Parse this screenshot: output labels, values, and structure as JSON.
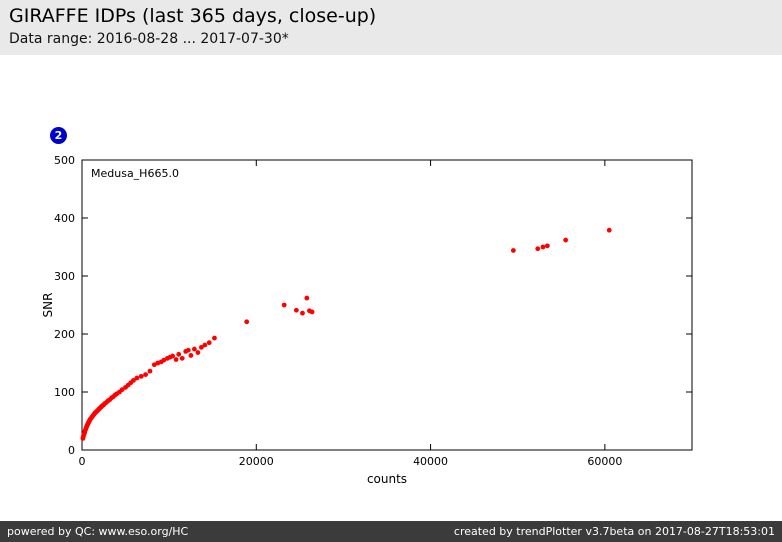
{
  "header": {
    "title": "GIRAFFE IDPs (last 365 days, close-up)",
    "subtitle": "Data range: 2016-08-28 ... 2017-07-30*"
  },
  "badge": {
    "label": "2",
    "color": "#0000cd"
  },
  "footer": {
    "left": "powered by QC: www.eso.org/HC",
    "right": "created by trendPlotter v3.7beta on 2017-08-27T18:53:01"
  },
  "chart_data": {
    "type": "scatter",
    "series_label": "Medusa_H665.0",
    "xlabel": "counts",
    "ylabel": "SNR",
    "xlim": [
      0,
      70000
    ],
    "ylim": [
      0,
      500
    ],
    "x_ticks": [
      0,
      20000,
      40000,
      60000
    ],
    "y_ticks": [
      0,
      100,
      200,
      300,
      400,
      500
    ],
    "marker_color": "#ff0000",
    "points": [
      [
        100,
        20
      ],
      [
        150,
        23
      ],
      [
        200,
        26
      ],
      [
        250,
        28
      ],
      [
        300,
        30
      ],
      [
        350,
        33
      ],
      [
        400,
        35
      ],
      [
        450,
        37
      ],
      [
        500,
        39
      ],
      [
        550,
        41
      ],
      [
        600,
        43
      ],
      [
        650,
        44
      ],
      [
        700,
        46
      ],
      [
        750,
        47
      ],
      [
        800,
        49
      ],
      [
        850,
        50
      ],
      [
        900,
        52
      ],
      [
        950,
        53
      ],
      [
        1000,
        54
      ],
      [
        1100,
        56
      ],
      [
        1200,
        58
      ],
      [
        1300,
        60
      ],
      [
        1400,
        62
      ],
      [
        1500,
        64
      ],
      [
        1600,
        65
      ],
      [
        1700,
        67
      ],
      [
        1800,
        68
      ],
      [
        1900,
        70
      ],
      [
        2000,
        71
      ],
      [
        2100,
        73
      ],
      [
        2200,
        74
      ],
      [
        2300,
        76
      ],
      [
        2400,
        77
      ],
      [
        2500,
        78
      ],
      [
        2600,
        80
      ],
      [
        2800,
        82
      ],
      [
        3000,
        85
      ],
      [
        3200,
        87
      ],
      [
        3400,
        90
      ],
      [
        3600,
        92
      ],
      [
        3800,
        95
      ],
      [
        4000,
        97
      ],
      [
        4300,
        100
      ],
      [
        4600,
        104
      ],
      [
        5000,
        108
      ],
      [
        5300,
        112
      ],
      [
        5600,
        116
      ],
      [
        5900,
        120
      ],
      [
        6300,
        124
      ],
      [
        6800,
        127
      ],
      [
        7300,
        130
      ],
      [
        7800,
        136
      ],
      [
        8300,
        147
      ],
      [
        8700,
        150
      ],
      [
        9100,
        152
      ],
      [
        9400,
        155
      ],
      [
        9800,
        158
      ],
      [
        10100,
        160
      ],
      [
        10400,
        162
      ],
      [
        10800,
        156
      ],
      [
        11100,
        165
      ],
      [
        11500,
        158
      ],
      [
        11900,
        170
      ],
      [
        12200,
        172
      ],
      [
        12500,
        163
      ],
      [
        12900,
        174
      ],
      [
        13300,
        168
      ],
      [
        13700,
        177
      ],
      [
        14100,
        181
      ],
      [
        14600,
        185
      ],
      [
        15200,
        193
      ],
      [
        18900,
        221
      ],
      [
        23200,
        250
      ],
      [
        24600,
        241
      ],
      [
        25300,
        236
      ],
      [
        25800,
        262
      ],
      [
        26100,
        240
      ],
      [
        26400,
        238
      ],
      [
        49500,
        344
      ],
      [
        52300,
        347
      ],
      [
        52900,
        350
      ],
      [
        53400,
        352
      ],
      [
        55500,
        362
      ],
      [
        60500,
        379
      ]
    ]
  }
}
